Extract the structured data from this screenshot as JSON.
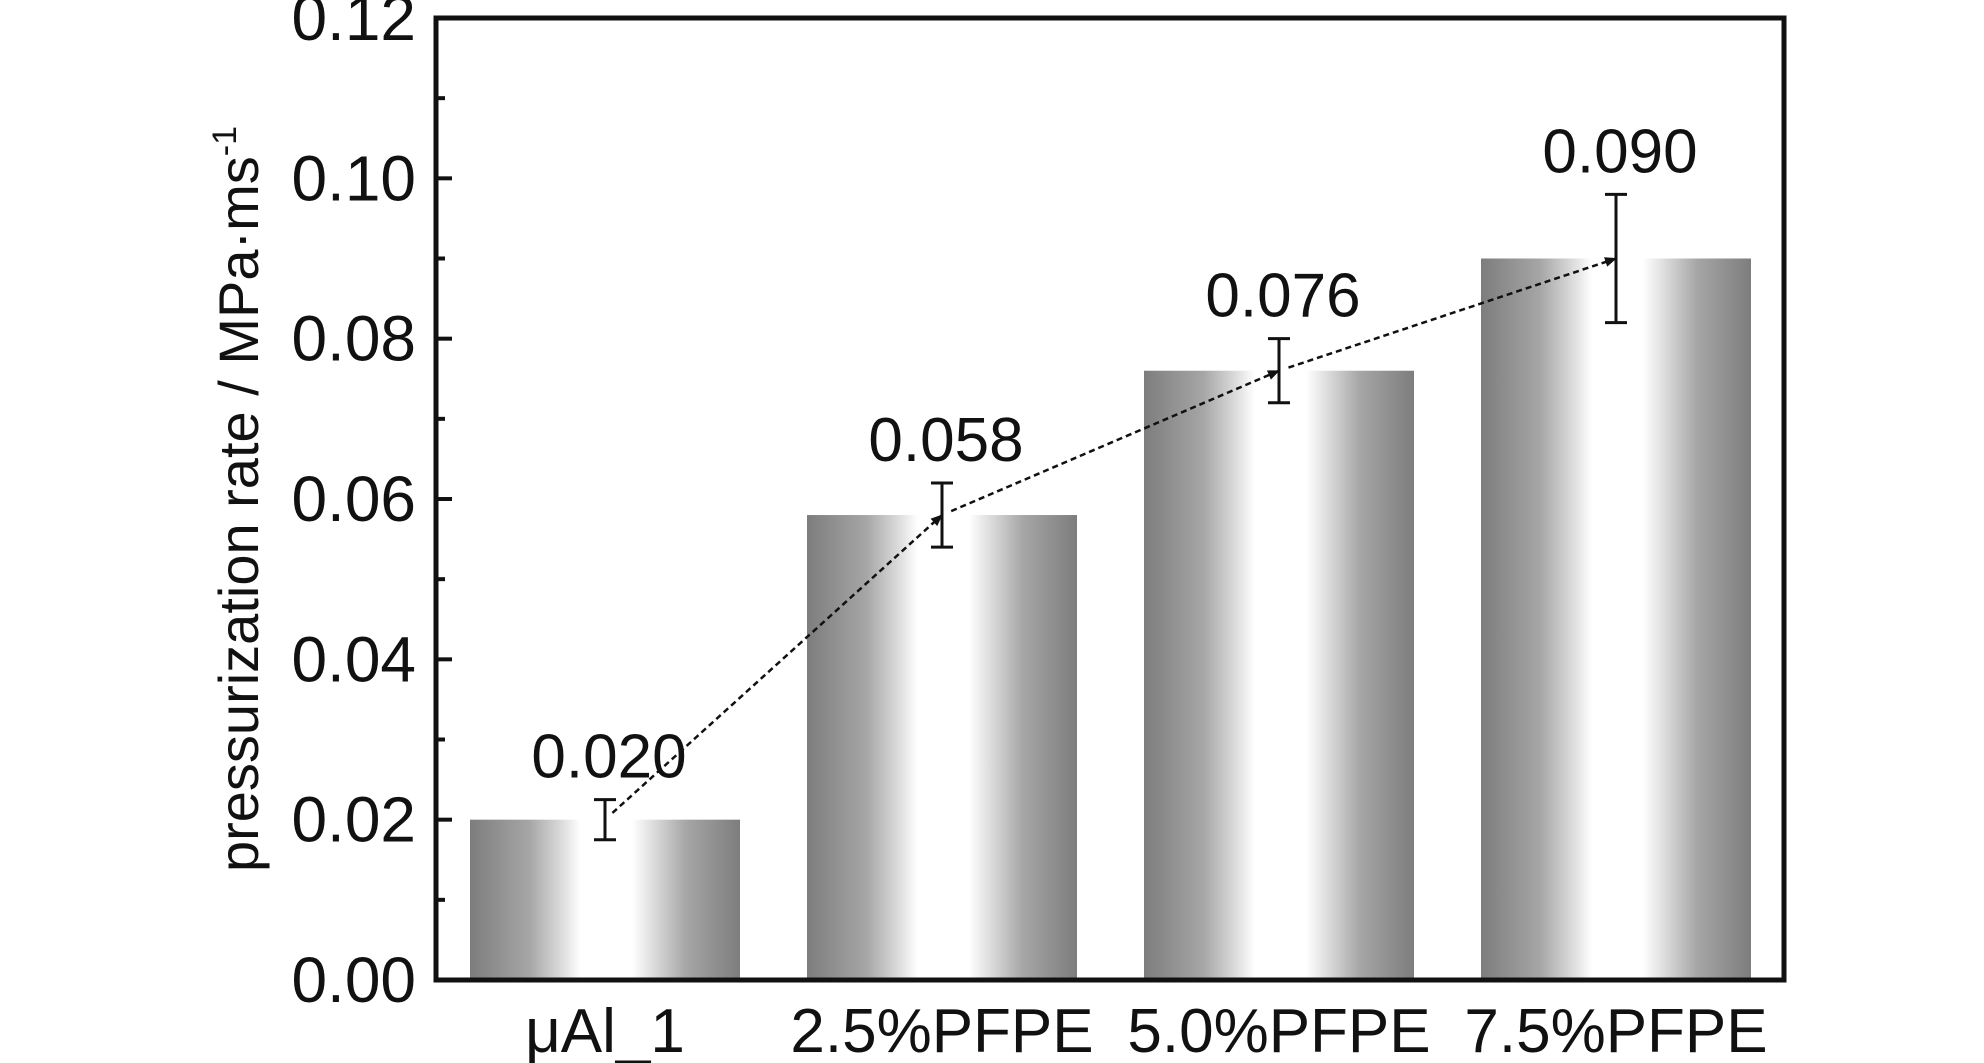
{
  "chart_data": {
    "type": "bar",
    "categories": [
      "μAl_1",
      "2.5%PFPE",
      "5.0%PFPE",
      "7.5%PFPE"
    ],
    "values": [
      0.02,
      0.058,
      0.076,
      0.09
    ],
    "errors": [
      0.0025,
      0.004,
      0.004,
      0.008
    ],
    "value_labels": [
      "0.020",
      "0.058",
      "0.076",
      "0.090"
    ],
    "ylabel": "pressurization rate / MPa·ms",
    "ylabel_superscript": "-1",
    "ylim": [
      0,
      0.12
    ],
    "yticks": [
      "0.00",
      "0.02",
      "0.04",
      "0.06",
      "0.08",
      "0.10",
      "0.12"
    ],
    "trend_line": "dashed-arrows",
    "bar_fill": "gray-cylinder-gradient",
    "colors": {
      "bar_dark": "#7d7d7d",
      "bar_light": "#ffffff",
      "axis": "#111111"
    }
  }
}
